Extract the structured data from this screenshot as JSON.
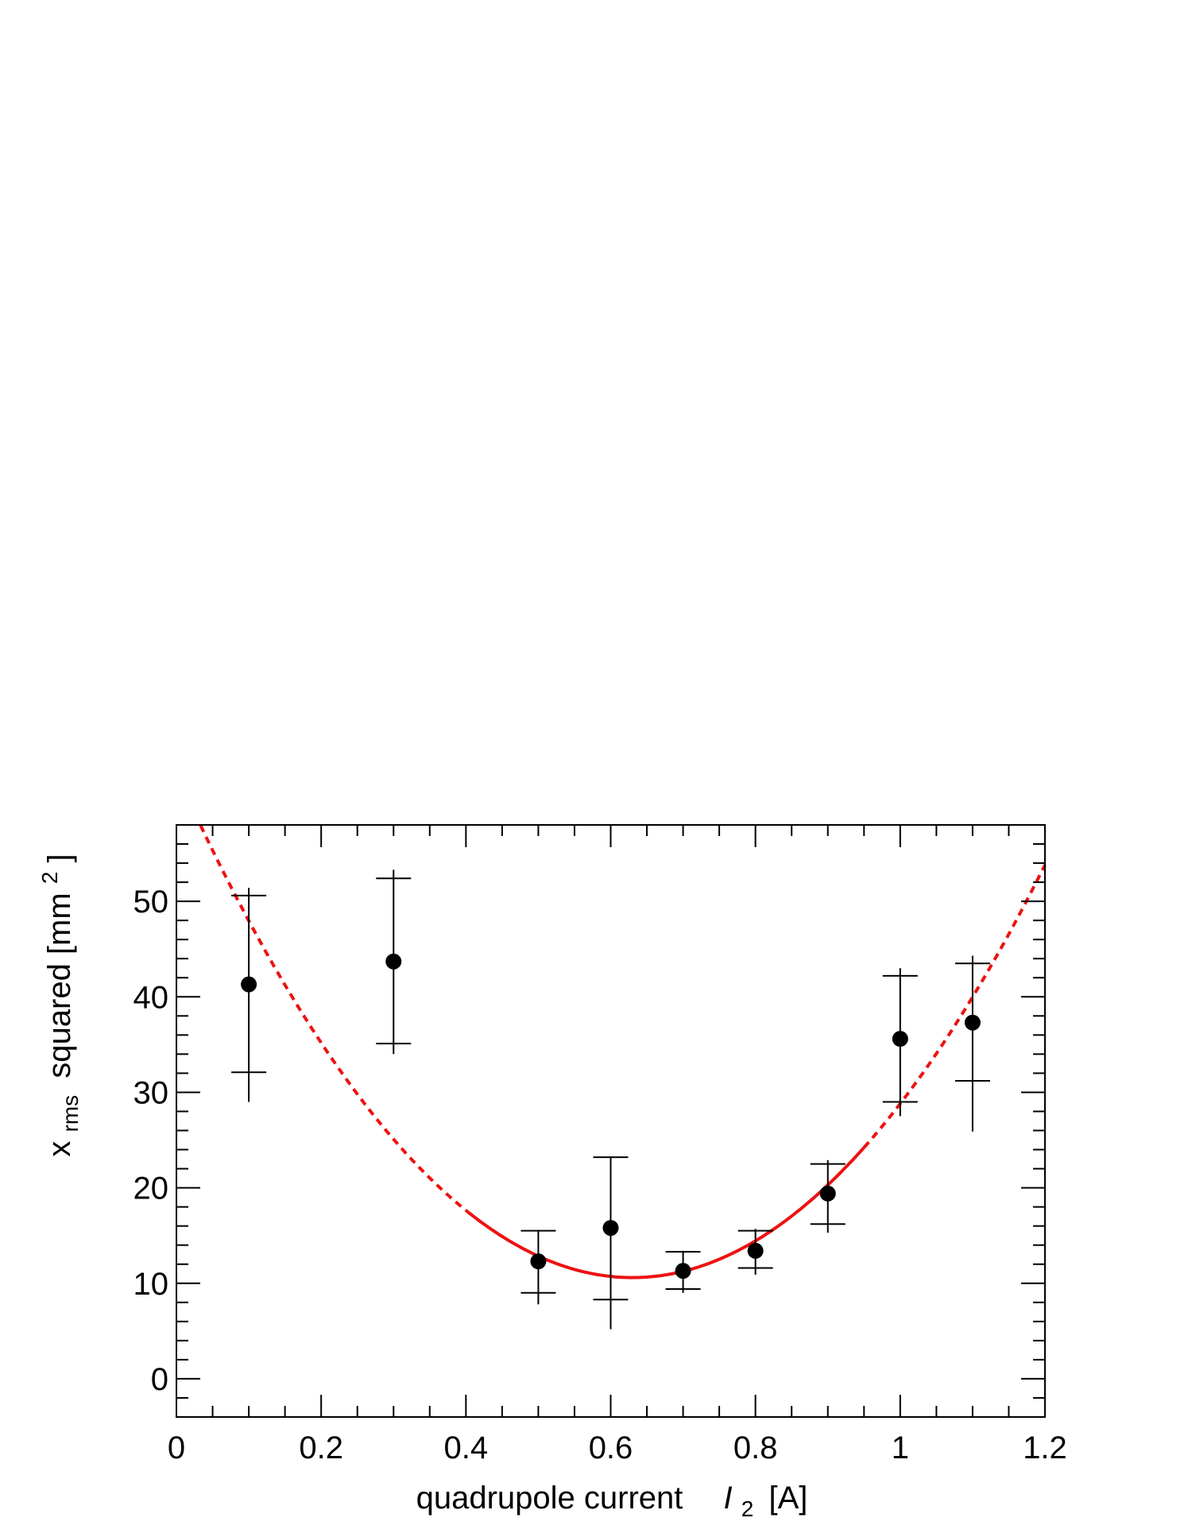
{
  "chart_data": {
    "type": "scatter",
    "title": "",
    "xlabel": {
      "main": "quadrupole current",
      "symbol": "I",
      "symbol_sub": "2",
      "unit": "[A]"
    },
    "ylabel": {
      "main": "x",
      "main_sub": "rms",
      "rest": "squared [mm",
      "sup": "2",
      "end": "]"
    },
    "xlim": [
      0,
      1.2
    ],
    "ylim": [
      -4,
      58
    ],
    "x_ticks": [
      0,
      0.2,
      0.4,
      0.6,
      0.8,
      1,
      1.2
    ],
    "x_tick_labels": [
      "0",
      "0.2",
      "0.4",
      "0.6",
      "0.8",
      "1",
      "1.2"
    ],
    "y_ticks": [
      0,
      10,
      20,
      30,
      40,
      50
    ],
    "y_tick_labels": [
      "0",
      "10",
      "20",
      "30",
      "40",
      "50"
    ],
    "grid": false,
    "series": [
      {
        "type": "points_with_errors",
        "color": "#000000",
        "x": [
          0.1,
          0.3,
          0.5,
          0.6,
          0.7,
          0.8,
          0.9,
          1.0,
          1.1
        ],
        "y": [
          41.3,
          43.7,
          12.3,
          15.8,
          11.3,
          13.4,
          19.4,
          35.6,
          37.3
        ],
        "inner_lo": [
          32.1,
          35.1,
          9.0,
          8.3,
          9.4,
          11.6,
          16.2,
          29.0,
          31.2
        ],
        "inner_hi": [
          50.6,
          52.4,
          15.5,
          23.2,
          13.3,
          15.5,
          22.5,
          42.2,
          43.5
        ],
        "outer_lo": [
          29.0,
          34.0,
          7.8,
          5.2,
          9.0,
          10.9,
          15.3,
          27.5,
          25.9
        ],
        "outer_hi": [
          51.4,
          53.3,
          15.6,
          23.3,
          13.4,
          15.7,
          22.9,
          43.0,
          44.3
        ]
      },
      {
        "type": "fit_curve",
        "color": "#ee1111",
        "model": "a*(x-x0)^2 + c",
        "a": 133,
        "x0": 0.63,
        "c": 10.6,
        "solid_range": [
          0.4,
          0.95
        ],
        "dashed_ranges": [
          [
            0.0,
            0.4
          ],
          [
            0.95,
            1.2
          ]
        ]
      }
    ]
  }
}
